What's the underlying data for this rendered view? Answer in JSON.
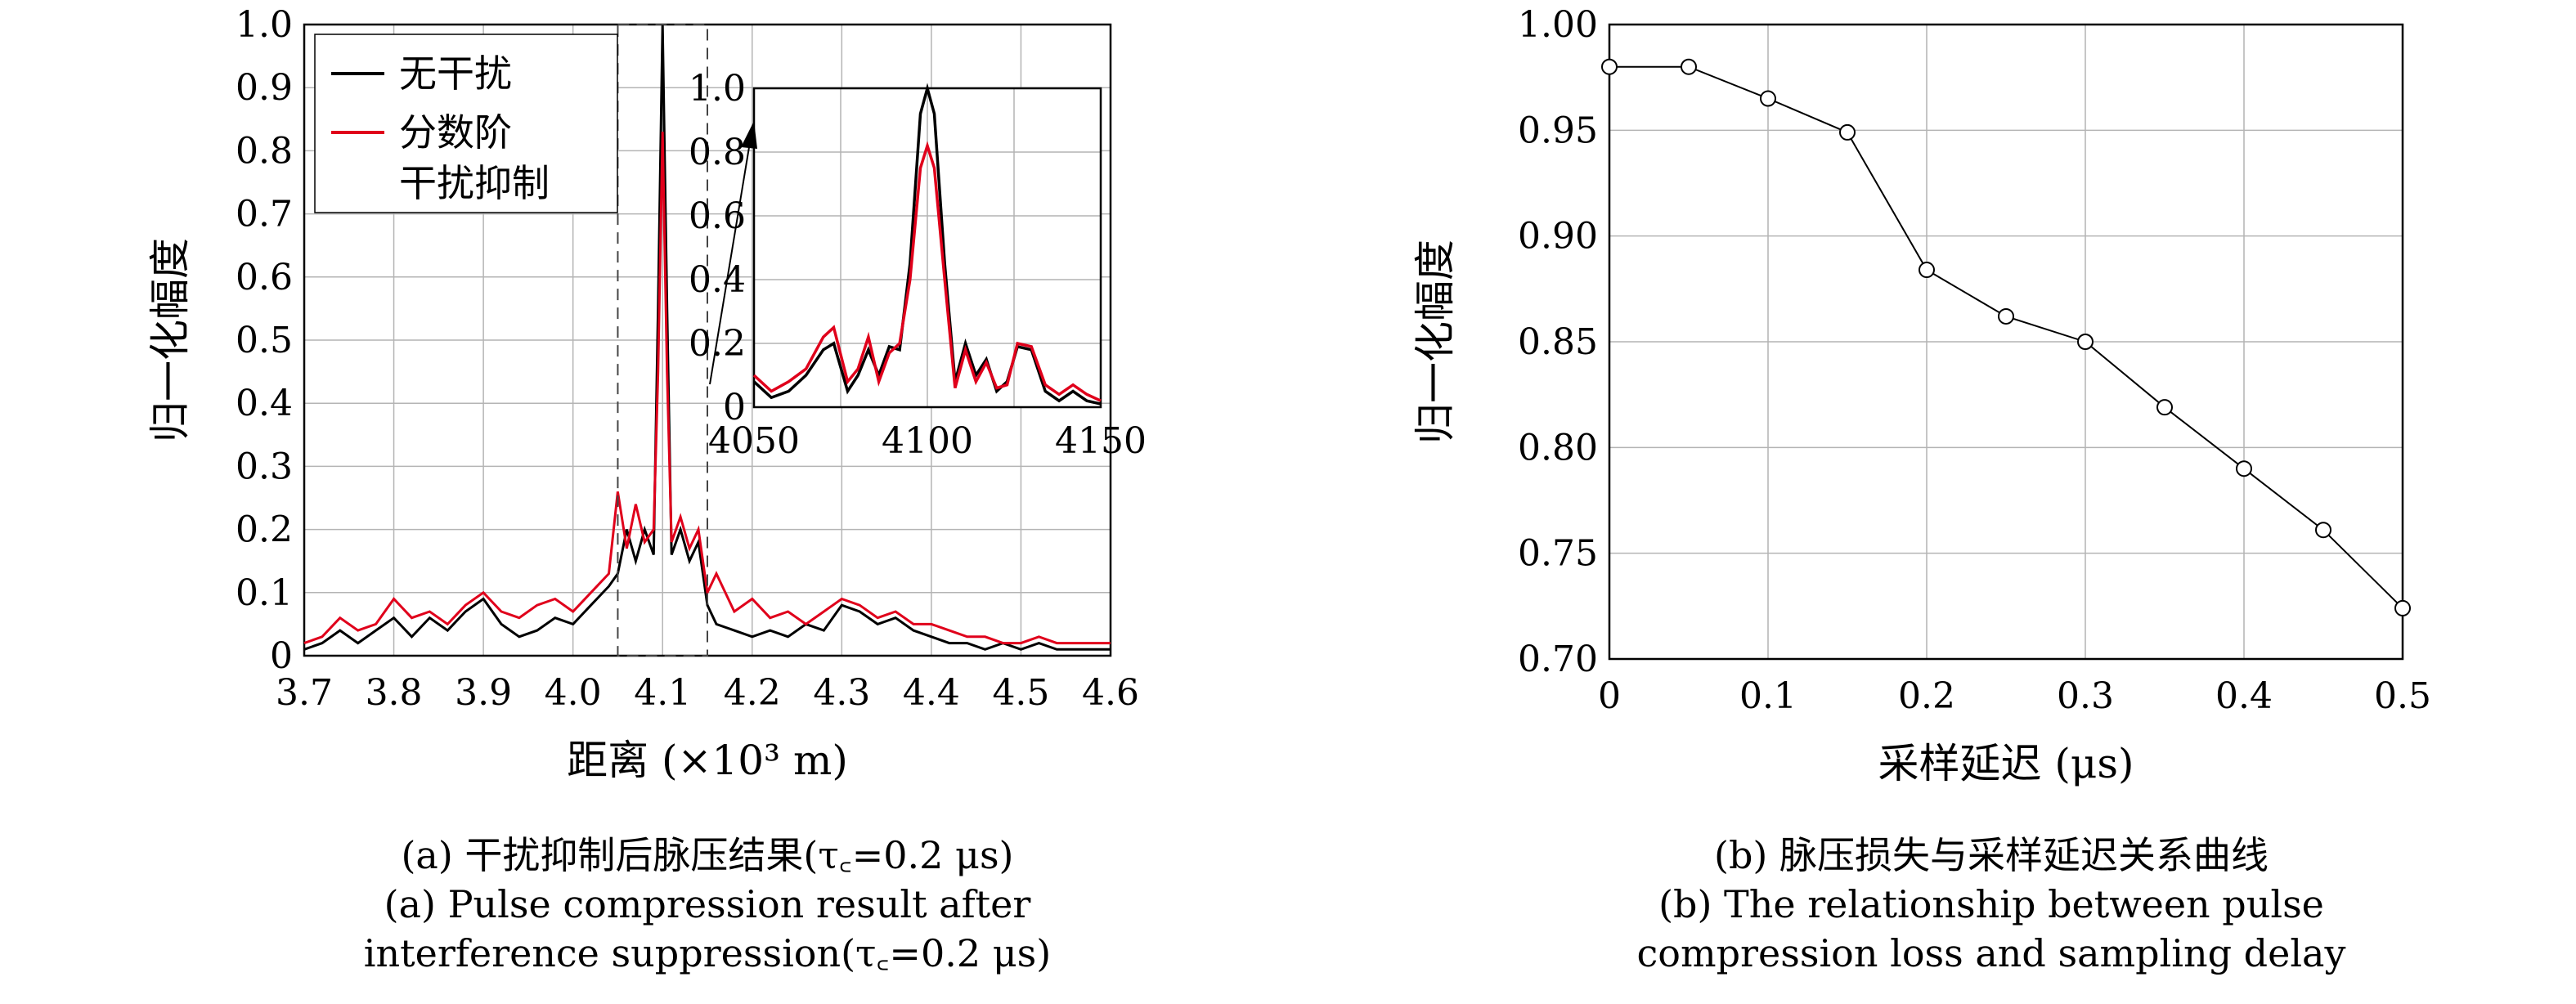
{
  "chart_data": [
    {
      "type": "line",
      "ylabel": "归一化幅度",
      "xlabel": "距离 (×10³ m)",
      "xlim": [
        3.7,
        4.6
      ],
      "ylim": [
        0,
        1.0
      ],
      "x_ticks": [
        3.7,
        3.8,
        3.9,
        4.0,
        4.1,
        4.2,
        4.3,
        4.4,
        4.5,
        4.6
      ],
      "x_tick_labels": [
        "3.7",
        "3.8",
        "3.9",
        "4.0",
        "4.1",
        "4.2",
        "4.3",
        "4.4",
        "4.5",
        "4.6"
      ],
      "y_ticks": [
        0,
        0.1,
        0.2,
        0.3,
        0.4,
        0.5,
        0.6,
        0.7,
        0.8,
        0.9,
        1.0
      ],
      "y_tick_labels": [
        "0",
        "0.1",
        "0.2",
        "0.3",
        "0.4",
        "0.5",
        "0.6",
        "0.7",
        "0.8",
        "0.9",
        "1.0"
      ],
      "grid": true,
      "legend_position": "top-left",
      "series": [
        {
          "name": "无干扰",
          "color": "#000000",
          "x": [
            3.7,
            3.72,
            3.74,
            3.76,
            3.78,
            3.8,
            3.82,
            3.84,
            3.86,
            3.88,
            3.9,
            3.92,
            3.94,
            3.96,
            3.98,
            4.0,
            4.02,
            4.04,
            4.05,
            4.06,
            4.07,
            4.08,
            4.09,
            4.095,
            4.1,
            4.105,
            4.11,
            4.12,
            4.13,
            4.14,
            4.15,
            4.16,
            4.18,
            4.2,
            4.22,
            4.24,
            4.26,
            4.28,
            4.3,
            4.32,
            4.34,
            4.36,
            4.38,
            4.4,
            4.42,
            4.44,
            4.46,
            4.48,
            4.5,
            4.52,
            4.54,
            4.56,
            4.58,
            4.6
          ],
          "y": [
            0.01,
            0.02,
            0.04,
            0.02,
            0.04,
            0.06,
            0.03,
            0.06,
            0.04,
            0.07,
            0.09,
            0.05,
            0.03,
            0.04,
            0.06,
            0.05,
            0.08,
            0.11,
            0.13,
            0.2,
            0.15,
            0.2,
            0.16,
            0.55,
            1.0,
            0.55,
            0.16,
            0.2,
            0.15,
            0.18,
            0.08,
            0.05,
            0.04,
            0.03,
            0.04,
            0.03,
            0.05,
            0.04,
            0.08,
            0.07,
            0.05,
            0.06,
            0.04,
            0.03,
            0.02,
            0.02,
            0.01,
            0.02,
            0.01,
            0.02,
            0.01,
            0.01,
            0.01,
            0.01
          ]
        },
        {
          "name": "分数阶干扰抑制",
          "color": "#e0001b",
          "x": [
            3.7,
            3.72,
            3.74,
            3.76,
            3.78,
            3.8,
            3.82,
            3.84,
            3.86,
            3.88,
            3.9,
            3.92,
            3.94,
            3.96,
            3.98,
            4.0,
            4.02,
            4.04,
            4.05,
            4.06,
            4.07,
            4.08,
            4.09,
            4.095,
            4.1,
            4.105,
            4.11,
            4.12,
            4.13,
            4.14,
            4.15,
            4.16,
            4.18,
            4.2,
            4.22,
            4.24,
            4.26,
            4.28,
            4.3,
            4.32,
            4.34,
            4.36,
            4.38,
            4.4,
            4.42,
            4.44,
            4.46,
            4.48,
            4.5,
            4.52,
            4.54,
            4.56,
            4.58,
            4.6
          ],
          "y": [
            0.02,
            0.03,
            0.06,
            0.04,
            0.05,
            0.09,
            0.06,
            0.07,
            0.05,
            0.08,
            0.1,
            0.07,
            0.06,
            0.08,
            0.09,
            0.07,
            0.1,
            0.13,
            0.26,
            0.17,
            0.24,
            0.18,
            0.2,
            0.45,
            0.83,
            0.45,
            0.18,
            0.22,
            0.17,
            0.2,
            0.1,
            0.13,
            0.07,
            0.09,
            0.06,
            0.07,
            0.05,
            0.07,
            0.09,
            0.08,
            0.06,
            0.07,
            0.05,
            0.05,
            0.04,
            0.03,
            0.03,
            0.02,
            0.02,
            0.03,
            0.02,
            0.02,
            0.02,
            0.02
          ]
        }
      ],
      "annotation_box": {
        "x_range": [
          4.05,
          4.15
        ],
        "y_range": [
          0,
          1.0
        ]
      },
      "inset": {
        "xlim": [
          4050,
          4150
        ],
        "ylim": [
          0,
          1.0
        ],
        "x_tick_labels": [
          "4050",
          "4100",
          "4150"
        ],
        "y_tick_labels": [
          "0",
          "0.2",
          "0.4",
          "0.6",
          "0.8",
          "1.0"
        ],
        "series": [
          {
            "color": "#000000",
            "x": [
              4050,
              4055,
              4060,
              4065,
              4070,
              4073,
              4077,
              4080,
              4083,
              4086,
              4089,
              4092,
              4095,
              4098,
              4100,
              4102,
              4105,
              4108,
              4111,
              4114,
              4117,
              4120,
              4123,
              4126,
              4130,
              4134,
              4138,
              4142,
              4146,
              4150
            ],
            "y": [
              0.08,
              0.03,
              0.05,
              0.1,
              0.18,
              0.2,
              0.05,
              0.1,
              0.18,
              0.1,
              0.19,
              0.18,
              0.45,
              0.92,
              1.0,
              0.92,
              0.45,
              0.08,
              0.2,
              0.1,
              0.15,
              0.05,
              0.08,
              0.19,
              0.18,
              0.05,
              0.02,
              0.05,
              0.02,
              0.01
            ]
          },
          {
            "color": "#e0001b",
            "x": [
              4050,
              4055,
              4060,
              4065,
              4070,
              4073,
              4077,
              4080,
              4083,
              4086,
              4089,
              4092,
              4095,
              4098,
              4100,
              4102,
              4105,
              4108,
              4111,
              4114,
              4117,
              4120,
              4123,
              4126,
              4130,
              4134,
              4138,
              4142,
              4146,
              4150
            ],
            "y": [
              0.1,
              0.05,
              0.08,
              0.12,
              0.22,
              0.25,
              0.08,
              0.12,
              0.22,
              0.08,
              0.17,
              0.2,
              0.4,
              0.75,
              0.82,
              0.75,
              0.4,
              0.06,
              0.18,
              0.08,
              0.14,
              0.06,
              0.07,
              0.2,
              0.19,
              0.07,
              0.04,
              0.07,
              0.04,
              0.02
            ]
          }
        ]
      },
      "caption_zh": "(a) 干扰抑制后脉压结果(τ꜀=0.2 μs)",
      "caption_en_line1": "(a) Pulse compression result after",
      "caption_en_line2": "interference suppression(τ꜀=0.2 μs)"
    },
    {
      "type": "line",
      "ylabel": "归一化幅度",
      "xlabel": "采样延迟 (μs)",
      "xlim": [
        0,
        0.5
      ],
      "ylim": [
        0.7,
        1.0
      ],
      "x_ticks": [
        0,
        0.1,
        0.2,
        0.3,
        0.4,
        0.5
      ],
      "x_tick_labels": [
        "0",
        "0.1",
        "0.2",
        "0.3",
        "0.4",
        "0.5"
      ],
      "y_ticks": [
        0.7,
        0.75,
        0.8,
        0.85,
        0.9,
        0.95,
        1.0
      ],
      "y_tick_labels": [
        "0.70",
        "0.75",
        "0.80",
        "0.85",
        "0.90",
        "0.95",
        "1.00"
      ],
      "grid": true,
      "series": [
        {
          "color": "#000000",
          "marker": "circle",
          "x": [
            0,
            0.05,
            0.1,
            0.15,
            0.2,
            0.25,
            0.3,
            0.35,
            0.4,
            0.45,
            0.5
          ],
          "y": [
            0.98,
            0.98,
            0.965,
            0.949,
            0.884,
            0.862,
            0.85,
            0.819,
            0.79,
            0.761,
            0.724
          ]
        }
      ],
      "caption_zh": "(b) 脉压损失与采样延迟关系曲线",
      "caption_en_line1": "(b) The relationship between pulse",
      "caption_en_line2": "compression loss and sampling delay"
    }
  ]
}
